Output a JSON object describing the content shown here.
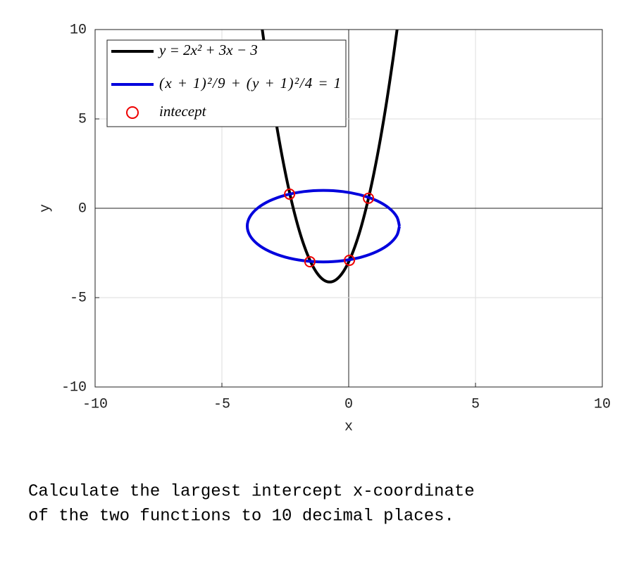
{
  "chart_data": {
    "type": "line",
    "xlabel": "x",
    "ylabel": "y",
    "xlim": [
      -10,
      10
    ],
    "ylim": [
      -10,
      10
    ],
    "xticks": [
      -10,
      -5,
      0,
      5,
      10
    ],
    "yticks": [
      -10,
      -5,
      0,
      5,
      10
    ],
    "grid": true,
    "legend": "upper left",
    "series": [
      {
        "name": "y = 2x² + 3x − 3",
        "color": "#000000",
        "style": "line",
        "x": [
          -3.408,
          -3.25,
          -3,
          -2.75,
          -2.5,
          -2.25,
          -2,
          -1.75,
          -1.5,
          -1.25,
          -1,
          -0.75,
          -0.5,
          -0.25,
          0,
          0.25,
          0.5,
          0.75,
          1,
          1.25,
          1.5,
          1.75,
          1.908
        ],
        "values": [
          10,
          8.375,
          6,
          3.875,
          2,
          0.375,
          -1,
          -2.125,
          -3,
          -3.625,
          -4,
          -4.125,
          -4,
          -3.625,
          -3,
          -2.125,
          -1,
          0.375,
          2,
          3.875,
          6,
          8.375,
          10
        ]
      },
      {
        "name": "(x + 1)²/9 + (y + 1)²/4 = 1",
        "color": "#0000dd",
        "style": "line",
        "x": [
          2,
          1.898,
          1.598,
          1.121,
          0.5,
          -0.224,
          -1,
          -1.776,
          -2.5,
          -3.121,
          -3.598,
          -3.898,
          -4,
          -3.898,
          -3.598,
          -3.121,
          -2.5,
          -1.776,
          -1,
          -0.224,
          0.5,
          1.121,
          1.598,
          1.898,
          2
        ],
        "values": [
          -1,
          -0.482,
          0,
          0.414,
          0.732,
          0.932,
          1,
          0.932,
          0.732,
          0.414,
          0,
          -0.482,
          -1,
          -1.518,
          -2,
          -2.414,
          -2.732,
          -2.932,
          -3,
          -2.932,
          -2.732,
          -2.414,
          -2,
          -1.518,
          -1
        ]
      },
      {
        "name": "intecept",
        "color": "#ee0000",
        "style": "markers",
        "x": [
          -2.33,
          -1.53,
          0.03,
          0.78
        ],
        "values": [
          0.79,
          -2.99,
          -2.91,
          0.56
        ]
      }
    ]
  },
  "question": [
    "Calculate the largest intercept x-coordinate",
    "of the two functions to 10 decimal places."
  ]
}
